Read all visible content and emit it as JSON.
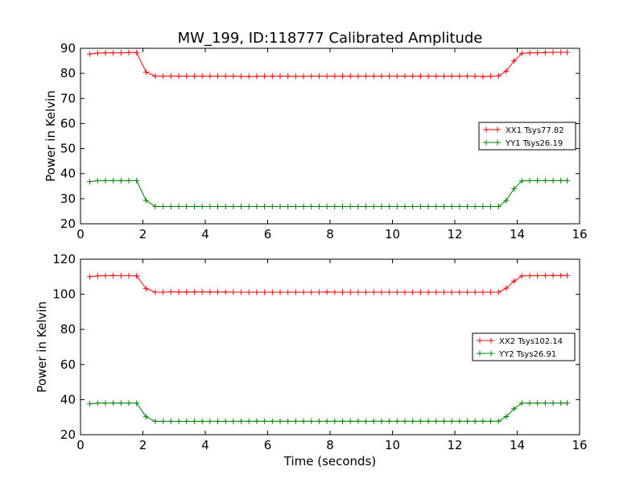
{
  "title": "MW_199, ID:118777 Calibrated Amplitude",
  "chart_data": [
    {
      "type": "line",
      "xlabel": "",
      "ylabel": "Power in Kelvin",
      "xlim": [
        0,
        16
      ],
      "ylim": [
        20,
        90
      ],
      "xticks": [
        0,
        2,
        4,
        6,
        8,
        10,
        12,
        14,
        16
      ],
      "yticks": [
        20,
        30,
        40,
        50,
        60,
        70,
        80,
        90
      ],
      "grid": false,
      "legend_position": "center-right",
      "x": [
        0.3,
        0.55,
        0.8,
        1.05,
        1.3,
        1.55,
        1.8,
        2.1,
        2.4,
        2.65,
        2.9,
        3.15,
        3.4,
        3.65,
        3.9,
        4.15,
        4.4,
        4.65,
        4.9,
        5.15,
        5.4,
        5.65,
        5.9,
        6.15,
        6.4,
        6.65,
        6.9,
        7.15,
        7.4,
        7.65,
        7.9,
        8.15,
        8.4,
        8.65,
        8.9,
        9.15,
        9.4,
        9.65,
        9.9,
        10.15,
        10.4,
        10.65,
        10.9,
        11.15,
        11.4,
        11.65,
        11.9,
        12.15,
        12.4,
        12.65,
        12.9,
        13.15,
        13.4,
        13.65,
        13.9,
        14.15,
        14.4,
        14.65,
        14.9,
        15.15,
        15.4,
        15.6
      ],
      "series": [
        {
          "name": "XX1 Tsys77.82",
          "color": "#ff0000",
          "values": [
            87.7,
            88.1,
            88.2,
            88.2,
            88.2,
            88.3,
            88.3,
            80.5,
            78.9,
            78.9,
            78.9,
            78.9,
            78.9,
            78.9,
            78.9,
            78.9,
            78.9,
            78.9,
            78.9,
            78.8,
            78.8,
            78.8,
            78.9,
            78.9,
            78.9,
            78.9,
            78.8,
            78.8,
            78.9,
            78.9,
            78.9,
            78.9,
            78.9,
            78.9,
            78.9,
            78.9,
            78.9,
            78.9,
            78.9,
            78.9,
            78.9,
            78.9,
            78.9,
            78.9,
            78.9,
            78.9,
            78.9,
            78.9,
            78.9,
            78.9,
            78.7,
            78.9,
            79.0,
            80.9,
            85.0,
            88.0,
            88.2,
            88.2,
            88.3,
            88.4,
            88.4,
            88.4
          ]
        },
        {
          "name": "YY1 Tsys26.19",
          "color": "#008000",
          "values": [
            36.8,
            37.2,
            37.2,
            37.2,
            37.2,
            37.2,
            37.2,
            29.3,
            26.9,
            26.9,
            26.9,
            26.9,
            26.9,
            26.9,
            26.9,
            26.9,
            26.9,
            26.9,
            26.9,
            26.9,
            26.9,
            26.9,
            26.9,
            26.9,
            26.9,
            26.9,
            26.9,
            26.9,
            26.9,
            26.9,
            26.9,
            26.9,
            26.9,
            26.9,
            26.9,
            26.9,
            26.9,
            26.9,
            26.9,
            26.9,
            26.9,
            26.9,
            26.9,
            26.9,
            26.9,
            26.9,
            26.9,
            26.9,
            26.9,
            26.9,
            26.9,
            26.9,
            26.9,
            29.3,
            34.0,
            37.1,
            37.2,
            37.2,
            37.2,
            37.2,
            37.2,
            37.2
          ]
        }
      ]
    },
    {
      "type": "line",
      "xlabel": "Time (seconds)",
      "ylabel": "Power in Kelvin",
      "xlim": [
        0,
        16
      ],
      "ylim": [
        20,
        120
      ],
      "xticks": [
        0,
        2,
        4,
        6,
        8,
        10,
        12,
        14,
        16
      ],
      "yticks": [
        20,
        40,
        60,
        80,
        100,
        120
      ],
      "grid": false,
      "legend_position": "center-right",
      "x": [
        0.3,
        0.55,
        0.8,
        1.05,
        1.3,
        1.55,
        1.8,
        2.1,
        2.4,
        2.65,
        2.9,
        3.15,
        3.4,
        3.65,
        3.9,
        4.15,
        4.4,
        4.65,
        4.9,
        5.15,
        5.4,
        5.65,
        5.9,
        6.15,
        6.4,
        6.65,
        6.9,
        7.15,
        7.4,
        7.65,
        7.9,
        8.15,
        8.4,
        8.65,
        8.9,
        9.15,
        9.4,
        9.65,
        9.9,
        10.15,
        10.4,
        10.65,
        10.9,
        11.15,
        11.4,
        11.65,
        11.9,
        12.15,
        12.4,
        12.65,
        12.9,
        13.15,
        13.4,
        13.65,
        13.9,
        14.15,
        14.4,
        14.65,
        14.9,
        15.15,
        15.4,
        15.6
      ],
      "series": [
        {
          "name": "XX2 Tsys102.14",
          "color": "#ff0000",
          "values": [
            110.0,
            110.5,
            110.6,
            110.7,
            110.6,
            110.6,
            110.5,
            103.2,
            101.2,
            101.2,
            101.4,
            101.3,
            101.3,
            101.3,
            101.4,
            101.3,
            101.3,
            101.3,
            101.2,
            101.2,
            101.2,
            101.2,
            101.2,
            101.2,
            101.2,
            101.2,
            101.2,
            101.2,
            101.2,
            101.2,
            101.3,
            101.2,
            101.2,
            101.2,
            101.2,
            101.2,
            101.2,
            101.2,
            101.2,
            101.2,
            101.2,
            101.2,
            101.2,
            101.2,
            101.2,
            101.2,
            101.2,
            101.2,
            101.2,
            101.2,
            101.2,
            101.2,
            101.2,
            103.5,
            107.5,
            110.5,
            110.6,
            110.6,
            110.7,
            110.7,
            110.7,
            110.7
          ]
        },
        {
          "name": "YY2 Tsys26.91",
          "color": "#008000",
          "values": [
            37.6,
            38.0,
            38.0,
            38.0,
            38.0,
            38.0,
            38.0,
            30.2,
            27.6,
            27.6,
            27.6,
            27.6,
            27.6,
            27.6,
            27.6,
            27.6,
            27.6,
            27.6,
            27.6,
            27.7,
            27.7,
            27.7,
            27.7,
            27.7,
            27.7,
            27.7,
            27.7,
            27.7,
            27.7,
            27.7,
            27.7,
            27.7,
            27.7,
            27.7,
            27.7,
            27.6,
            27.7,
            27.7,
            27.7,
            27.7,
            27.7,
            27.7,
            27.7,
            27.7,
            27.7,
            27.7,
            27.7,
            27.7,
            27.7,
            27.7,
            27.7,
            27.7,
            27.7,
            30.3,
            34.8,
            38.0,
            38.0,
            38.0,
            38.0,
            38.0,
            38.0,
            38.0
          ]
        }
      ]
    }
  ]
}
